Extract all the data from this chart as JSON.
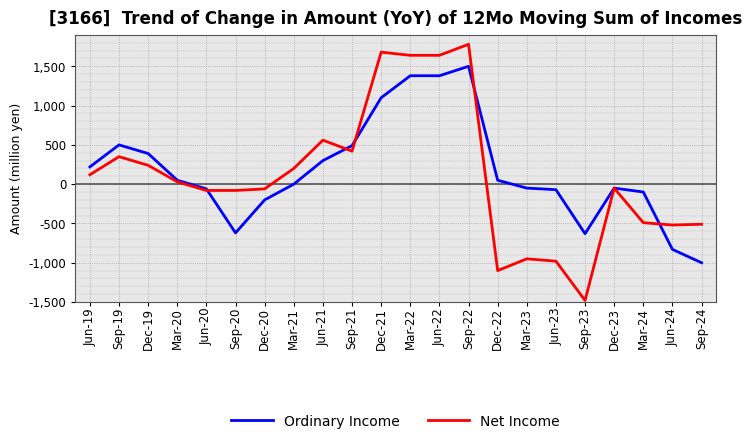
{
  "title": "[3166]  Trend of Change in Amount (YoY) of 12Mo Moving Sum of Incomes",
  "ylabel": "Amount (million yen)",
  "x_labels": [
    "Jun-19",
    "Sep-19",
    "Dec-19",
    "Mar-20",
    "Jun-20",
    "Sep-20",
    "Dec-20",
    "Mar-21",
    "Jun-21",
    "Sep-21",
    "Dec-21",
    "Mar-22",
    "Jun-22",
    "Sep-22",
    "Dec-22",
    "Mar-23",
    "Jun-23",
    "Sep-23",
    "Dec-23",
    "Mar-24",
    "Jun-24",
    "Sep-24"
  ],
  "ordinary_income": [
    220,
    500,
    390,
    50,
    -60,
    -620,
    -200,
    0,
    300,
    490,
    1100,
    1380,
    1380,
    1500,
    50,
    -50,
    -70,
    -630,
    -50,
    -100,
    -830,
    -1000
  ],
  "net_income": [
    120,
    350,
    240,
    30,
    -80,
    -80,
    -60,
    200,
    560,
    420,
    1680,
    1640,
    1640,
    1780,
    -1100,
    -950,
    -980,
    -1480,
    -50,
    -490,
    -520,
    -510
  ],
  "ordinary_color": "#0000ff",
  "net_color": "#ff0000",
  "ylim": [
    -1500,
    1900
  ],
  "yticks": [
    -1500,
    -1000,
    -500,
    0,
    500,
    1000,
    1500
  ],
  "plot_bg_color": "#e8e8e8",
  "fig_bg_color": "#ffffff",
  "grid_color": "#999999",
  "zero_line_color": "#555555",
  "linewidth": 2.0,
  "title_fontsize": 12,
  "axis_label_fontsize": 9,
  "tick_fontsize": 8.5,
  "legend_fontsize": 10
}
